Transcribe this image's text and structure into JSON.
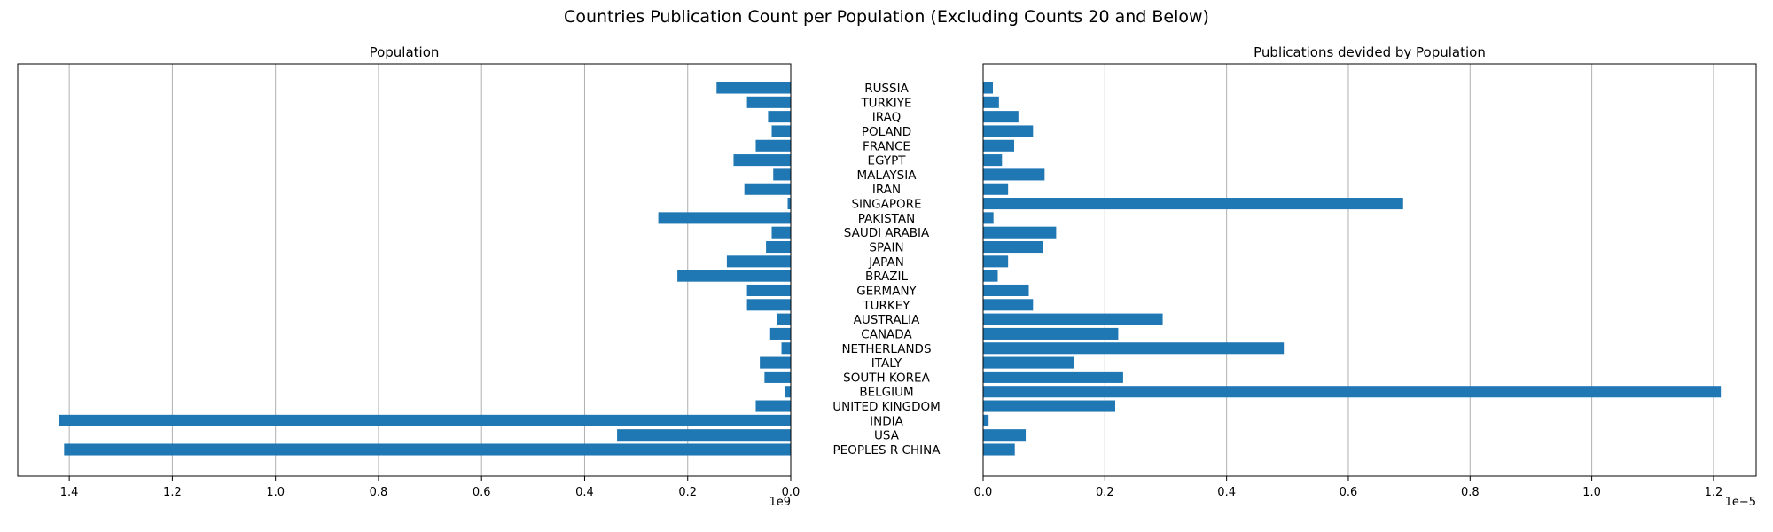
{
  "figure": {
    "title": "Countries Publication Count per Population (Excluding Counts 20 and Below)"
  },
  "colors": {
    "bar": "#1f77b4",
    "grid": "#b0b0b0",
    "axis": "#000000"
  },
  "chart_data": [
    {
      "type": "bar",
      "orientation": "horizontal",
      "title": "Population",
      "x_inverted": true,
      "xlim": [
        1.5,
        0
      ],
      "x_ticks": [
        "1.4",
        "1.2",
        "1.0",
        "0.8",
        "0.6",
        "0.4",
        "0.2",
        "0.0"
      ],
      "x_tick_values": [
        1.4,
        1.2,
        1.0,
        0.8,
        0.6,
        0.4,
        0.2,
        0.0
      ],
      "offset_label": "1e9",
      "grid": "x",
      "categories": [
        "RUSSIA",
        "TURKIYE",
        "IRAQ",
        "POLAND",
        "FRANCE",
        "EGYPT",
        "MALAYSIA",
        "IRAN",
        "SINGAPORE",
        "PAKISTAN",
        "SAUDI ARABIA",
        "SPAIN",
        "JAPAN",
        "BRAZIL",
        "GERMANY",
        "TURKEY",
        "AUSTRALIA",
        "CANADA",
        "NETHERLANDS",
        "ITALY",
        "SOUTH KOREA",
        "BELGIUM",
        "UNITED KINGDOM",
        "INDIA",
        "USA",
        "PEOPLES R CHINA"
      ],
      "values": [
        0.144,
        0.085,
        0.044,
        0.037,
        0.068,
        0.111,
        0.034,
        0.09,
        0.006,
        0.257,
        0.037,
        0.048,
        0.124,
        0.22,
        0.085,
        0.085,
        0.027,
        0.04,
        0.018,
        0.06,
        0.051,
        0.012,
        0.068,
        1.42,
        0.337,
        1.41
      ]
    },
    {
      "type": "bar",
      "orientation": "horizontal",
      "title": "Publications devided by Population",
      "xlim": [
        0,
        1.27
      ],
      "x_ticks": [
        "0.0",
        "0.2",
        "0.4",
        "0.6",
        "0.8",
        "1.0",
        "1.2"
      ],
      "x_tick_values": [
        0.0,
        0.2,
        0.4,
        0.6,
        0.8,
        1.0,
        1.2
      ],
      "offset_label": "1e−5",
      "grid": "x",
      "categories": [
        "RUSSIA",
        "TURKIYE",
        "IRAQ",
        "POLAND",
        "FRANCE",
        "EGYPT",
        "MALAYSIA",
        "IRAN",
        "SINGAPORE",
        "PAKISTAN",
        "SAUDI ARABIA",
        "SPAIN",
        "JAPAN",
        "BRAZIL",
        "GERMANY",
        "TURKEY",
        "AUSTRALIA",
        "CANADA",
        "NETHERLANDS",
        "ITALY",
        "SOUTH KOREA",
        "BELGIUM",
        "UNITED KINGDOM",
        "INDIA",
        "USA",
        "PEOPLES R CHINA"
      ],
      "values": [
        0.016,
        0.026,
        0.058,
        0.082,
        0.051,
        0.031,
        0.101,
        0.041,
        0.69,
        0.017,
        0.12,
        0.098,
        0.041,
        0.024,
        0.075,
        0.082,
        0.295,
        0.222,
        0.494,
        0.15,
        0.23,
        1.212,
        0.217,
        0.009,
        0.07,
        0.052
      ]
    }
  ]
}
